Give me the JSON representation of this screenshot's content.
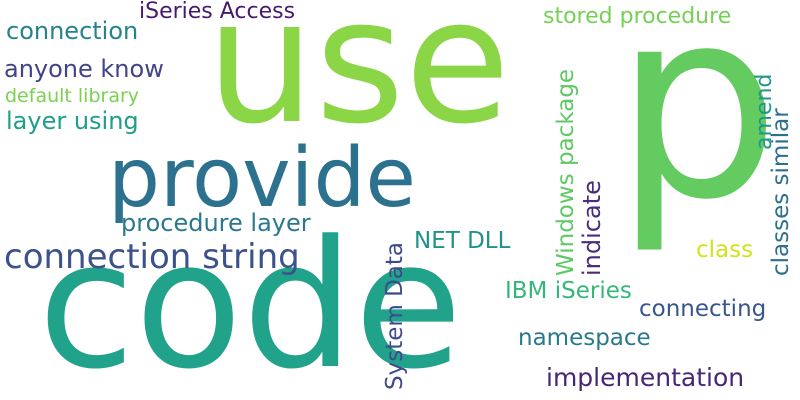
{
  "words": {
    "use": {
      "text": "use",
      "color": "#8bd646"
    },
    "p": {
      "text": "p",
      "color": "#63cb5f"
    },
    "code": {
      "text": "code",
      "color": "#21a38b"
    },
    "provide": {
      "text": "provide",
      "color": "#2c728e"
    },
    "connection_string": {
      "text": "connection string",
      "color": "#3b528b"
    },
    "iseries_access": {
      "text": "iSeries Access",
      "color": "#481a6c"
    },
    "connection": {
      "text": "connection",
      "color": "#26828e"
    },
    "anyone_know": {
      "text": "anyone know",
      "color": "#414487"
    },
    "default_library": {
      "text": "default library",
      "color": "#7ad151"
    },
    "layer_using": {
      "text": "layer using",
      "color": "#1f9e89"
    },
    "stored_procedure": {
      "text": "stored procedure",
      "color": "#75d054"
    },
    "procedure_layer": {
      "text": "procedure layer",
      "color": "#2a788e"
    },
    "net_dll": {
      "text": "NET DLL",
      "color": "#21918c"
    },
    "ibm_iseries": {
      "text": "IBM iSeries",
      "color": "#35b779"
    },
    "namespace": {
      "text": "namespace",
      "color": "#2a788e"
    },
    "connecting": {
      "text": "connecting",
      "color": "#39568c"
    },
    "implementation": {
      "text": "implementation",
      "color": "#482677"
    },
    "class": {
      "text": "class",
      "color": "#d2e21b"
    },
    "system_data": {
      "text": "System Data",
      "color": "#3e4a89"
    },
    "windows_package": {
      "text": "Windows package",
      "color": "#5ec962"
    },
    "indicate": {
      "text": "indicate",
      "color": "#472d7b"
    },
    "amend": {
      "text": "amend",
      "color": "#1f988b"
    },
    "classes_similar": {
      "text": "classes similar",
      "color": "#2d708e"
    }
  }
}
